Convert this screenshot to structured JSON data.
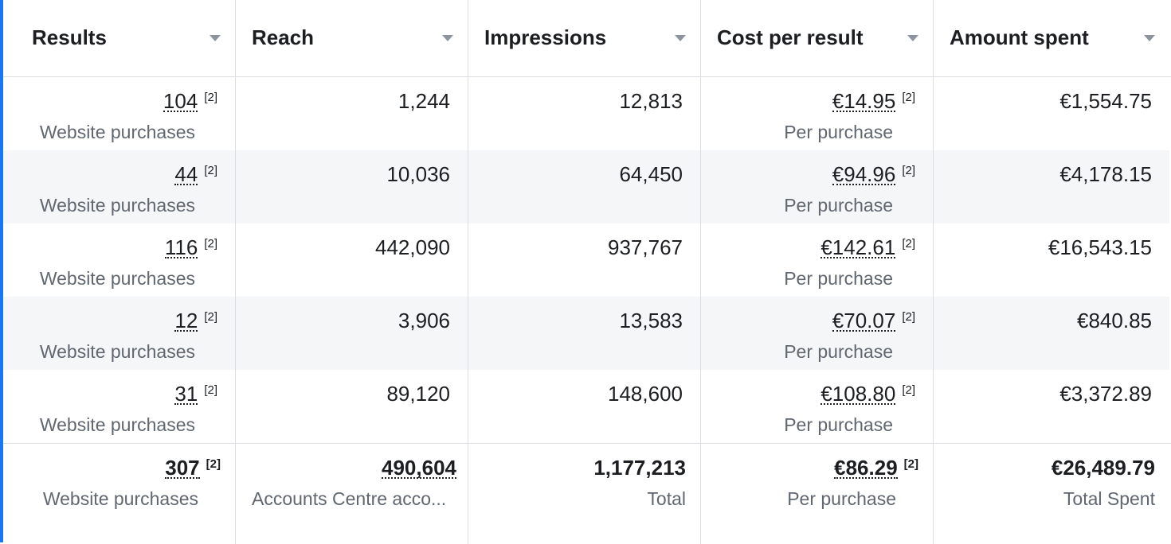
{
  "columns": [
    "Results",
    "Reach",
    "Impressions",
    "Cost per result",
    "Amount spent"
  ],
  "footnote": "[2]",
  "rows": [
    {
      "results": "104",
      "results_sub": "Website purchases",
      "reach": "1,244",
      "impressions": "12,813",
      "cost": "€14.95",
      "cost_sub": "Per purchase",
      "spent": "€1,554.75"
    },
    {
      "results": "44",
      "results_sub": "Website purchases",
      "reach": "10,036",
      "impressions": "64,450",
      "cost": "€94.96",
      "cost_sub": "Per purchase",
      "spent": "€4,178.15"
    },
    {
      "results": "116",
      "results_sub": "Website purchases",
      "reach": "442,090",
      "impressions": "937,767",
      "cost": "€142.61",
      "cost_sub": "Per purchase",
      "spent": "€16,543.15"
    },
    {
      "results": "12",
      "results_sub": "Website purchases",
      "reach": "3,906",
      "impressions": "13,583",
      "cost": "€70.07",
      "cost_sub": "Per purchase",
      "spent": "€840.85"
    },
    {
      "results": "31",
      "results_sub": "Website purchases",
      "reach": "89,120",
      "impressions": "148,600",
      "cost": "€108.80",
      "cost_sub": "Per purchase",
      "spent": "€3,372.89"
    }
  ],
  "totals": {
    "results": "307",
    "results_sub": "Website purchases",
    "reach": "490,604",
    "reach_sub": "Accounts Centre acco...",
    "impressions": "1,177,213",
    "impressions_sub": "Total",
    "cost": "€86.29",
    "cost_sub": "Per purchase",
    "spent": "€26,489.79",
    "spent_sub": "Total Spent"
  },
  "colors": {
    "accent": "#1877f2",
    "alt_row": "#f5f6f7",
    "border": "#dadde1",
    "muted": "#606770"
  },
  "icons": {
    "sort": "chevron-down-icon"
  }
}
